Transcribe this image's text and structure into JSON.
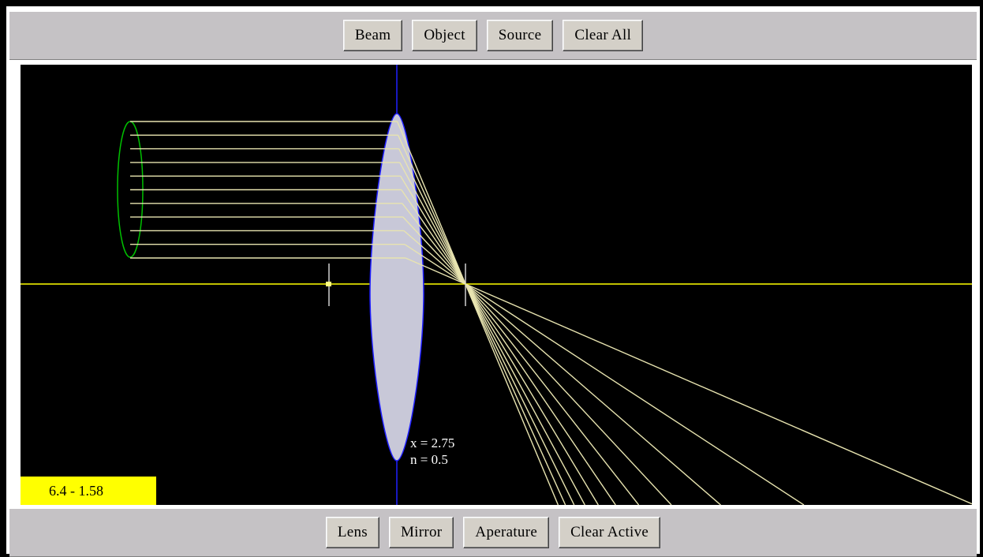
{
  "top_toolbar": {
    "buttons": [
      "Beam",
      "Object",
      "Source",
      "Clear All"
    ]
  },
  "bottom_toolbar": {
    "buttons": [
      "Lens",
      "Mirror",
      "Aperature",
      "Clear Active"
    ]
  },
  "readout": {
    "x_label": "x = 2.75",
    "n_label": "n = 0.5"
  },
  "status": {
    "value": "6.4 - 1.58"
  },
  "colors": {
    "background": "#000000",
    "axis": "#ffff00",
    "lens_fill": "#c8c8d8",
    "lens_outline": "#2020ff",
    "rays": "#e8e4b0",
    "beam_source": "#00c000",
    "status_bg": "#ffff00"
  }
}
